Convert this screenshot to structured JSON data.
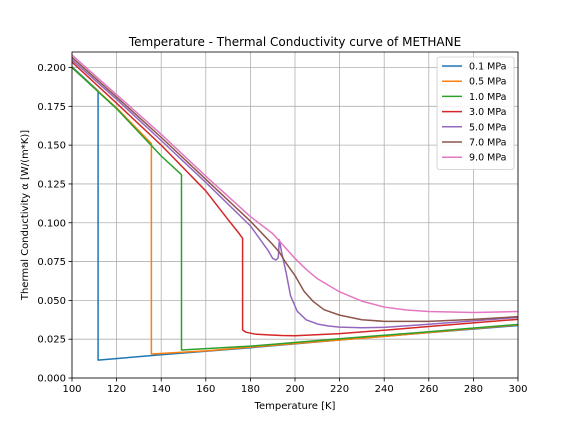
{
  "chart_data": {
    "type": "line",
    "title": "Temperature - Thermal Conductivity curve of METHANE",
    "xlabel": "Temperature [K]",
    "ylabel": "Thermal Conductivity  α  [W/(m*K)]",
    "xlim": [
      100,
      300
    ],
    "ylim": [
      0.0,
      0.21
    ],
    "xticks": [
      100,
      120,
      140,
      160,
      180,
      200,
      220,
      240,
      260,
      280,
      300
    ],
    "yticks": [
      0.0,
      0.025,
      0.05,
      0.075,
      0.1,
      0.125,
      0.15,
      0.175,
      0.2
    ],
    "xtick_labels": [
      "100",
      "120",
      "140",
      "160",
      "180",
      "200",
      "220",
      "240",
      "260",
      "280",
      "300"
    ],
    "ytick_labels": [
      "0.000",
      "0.025",
      "0.050",
      "0.075",
      "0.100",
      "0.125",
      "0.150",
      "0.175",
      "0.200"
    ],
    "grid": true,
    "legend_position": "top-right",
    "series": [
      {
        "name": "0.1 MPa",
        "color": "#1f77b4",
        "x": [
          100,
          111.7,
          111.7,
          140,
          180,
          220,
          260,
          300
        ],
        "y": [
          0.2005,
          0.185,
          0.0115,
          0.015,
          0.0195,
          0.0245,
          0.0292,
          0.0338
        ]
      },
      {
        "name": "0.5 MPa",
        "color": "#ff7f0e",
        "x": [
          100,
          120,
          135.6,
          135.6,
          160,
          200,
          240,
          280,
          300
        ],
        "y": [
          0.2,
          0.174,
          0.151,
          0.0155,
          0.0175,
          0.0222,
          0.0268,
          0.0318,
          0.0342
        ]
      },
      {
        "name": "1.0 MPa",
        "color": "#2ca02c",
        "x": [
          100,
          120,
          140,
          149.1,
          149.1,
          180,
          220,
          260,
          300
        ],
        "y": [
          0.2,
          0.1735,
          0.143,
          0.131,
          0.018,
          0.0205,
          0.0253,
          0.0298,
          0.0345
        ]
      },
      {
        "name": "3.0 MPa",
        "color": "#d62728",
        "x": [
          100,
          120,
          140,
          160,
          170,
          175,
          176.5,
          176.5,
          178,
          182,
          188,
          194,
          200,
          220,
          240,
          260,
          280,
          300
        ],
        "y": [
          0.2035,
          0.177,
          0.15,
          0.1205,
          0.102,
          0.093,
          0.09,
          0.031,
          0.0295,
          0.0283,
          0.0278,
          0.0274,
          0.0272,
          0.0286,
          0.0308,
          0.0332,
          0.0355,
          0.0378
        ]
      },
      {
        "name": "5.0 MPa",
        "color": "#9467bd",
        "x": [
          100,
          120,
          140,
          160,
          180,
          188,
          190,
          191.5,
          192.5,
          193,
          194,
          196,
          198,
          201,
          205,
          210,
          215,
          220,
          230,
          240,
          260,
          280,
          300
        ],
        "y": [
          0.205,
          0.1795,
          0.153,
          0.126,
          0.098,
          0.082,
          0.077,
          0.076,
          0.0775,
          0.089,
          0.081,
          0.068,
          0.053,
          0.043,
          0.0375,
          0.0348,
          0.0335,
          0.0328,
          0.0324,
          0.0326,
          0.0346,
          0.0368,
          0.039
        ]
      },
      {
        "name": "7.0 MPa",
        "color": "#8c564b",
        "x": [
          100,
          120,
          140,
          160,
          180,
          186,
          190,
          193,
          196,
          200,
          204,
          208,
          213,
          220,
          230,
          240,
          260,
          280,
          300
        ],
        "y": [
          0.2065,
          0.181,
          0.155,
          0.128,
          0.101,
          0.092,
          0.086,
          0.081,
          0.074,
          0.066,
          0.056,
          0.0495,
          0.044,
          0.0405,
          0.0375,
          0.0365,
          0.0365,
          0.0378,
          0.0395
        ]
      },
      {
        "name": "9.0 MPa",
        "color": "#e377c2",
        "x": [
          100,
          120,
          140,
          160,
          180,
          190,
          195,
          200,
          205,
          210,
          220,
          230,
          240,
          250,
          260,
          280,
          300
        ],
        "y": [
          0.208,
          0.1825,
          0.157,
          0.13,
          0.104,
          0.093,
          0.085,
          0.077,
          0.07,
          0.064,
          0.0555,
          0.0495,
          0.0457,
          0.0438,
          0.0428,
          0.0422,
          0.0428
        ]
      }
    ]
  }
}
